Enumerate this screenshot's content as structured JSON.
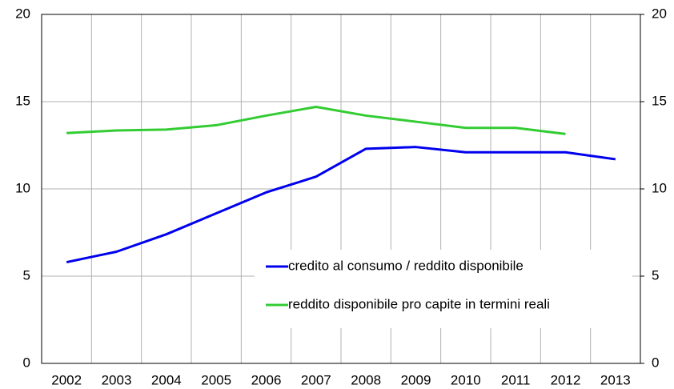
{
  "chart_data": {
    "type": "line",
    "categories": [
      "2002",
      "2003",
      "2004",
      "2005",
      "2006",
      "2007",
      "2008",
      "2009",
      "2010",
      "2011",
      "2012",
      "2013"
    ],
    "series": [
      {
        "name": "credito al consumo / reddito disponibile",
        "color": "#0000ee",
        "values": [
          5.8,
          6.4,
          7.4,
          8.6,
          9.8,
          10.7,
          12.3,
          12.4,
          12.1,
          12.1,
          12.1,
          11.7
        ]
      },
      {
        "name": "reddito disponibile pro capite in termini reali",
        "color": "#33cc33",
        "values": [
          13.2,
          13.35,
          13.4,
          13.65,
          14.2,
          14.7,
          14.2,
          13.85,
          13.5,
          13.5,
          13.15,
          null
        ]
      }
    ],
    "ylim": [
      0,
      20
    ],
    "yticks": [
      0,
      5,
      10,
      15,
      20
    ],
    "y2lim": [
      0,
      20
    ],
    "y2ticks": [
      0,
      5,
      10,
      15,
      20
    ],
    "grid": true,
    "legend": "lower right"
  }
}
